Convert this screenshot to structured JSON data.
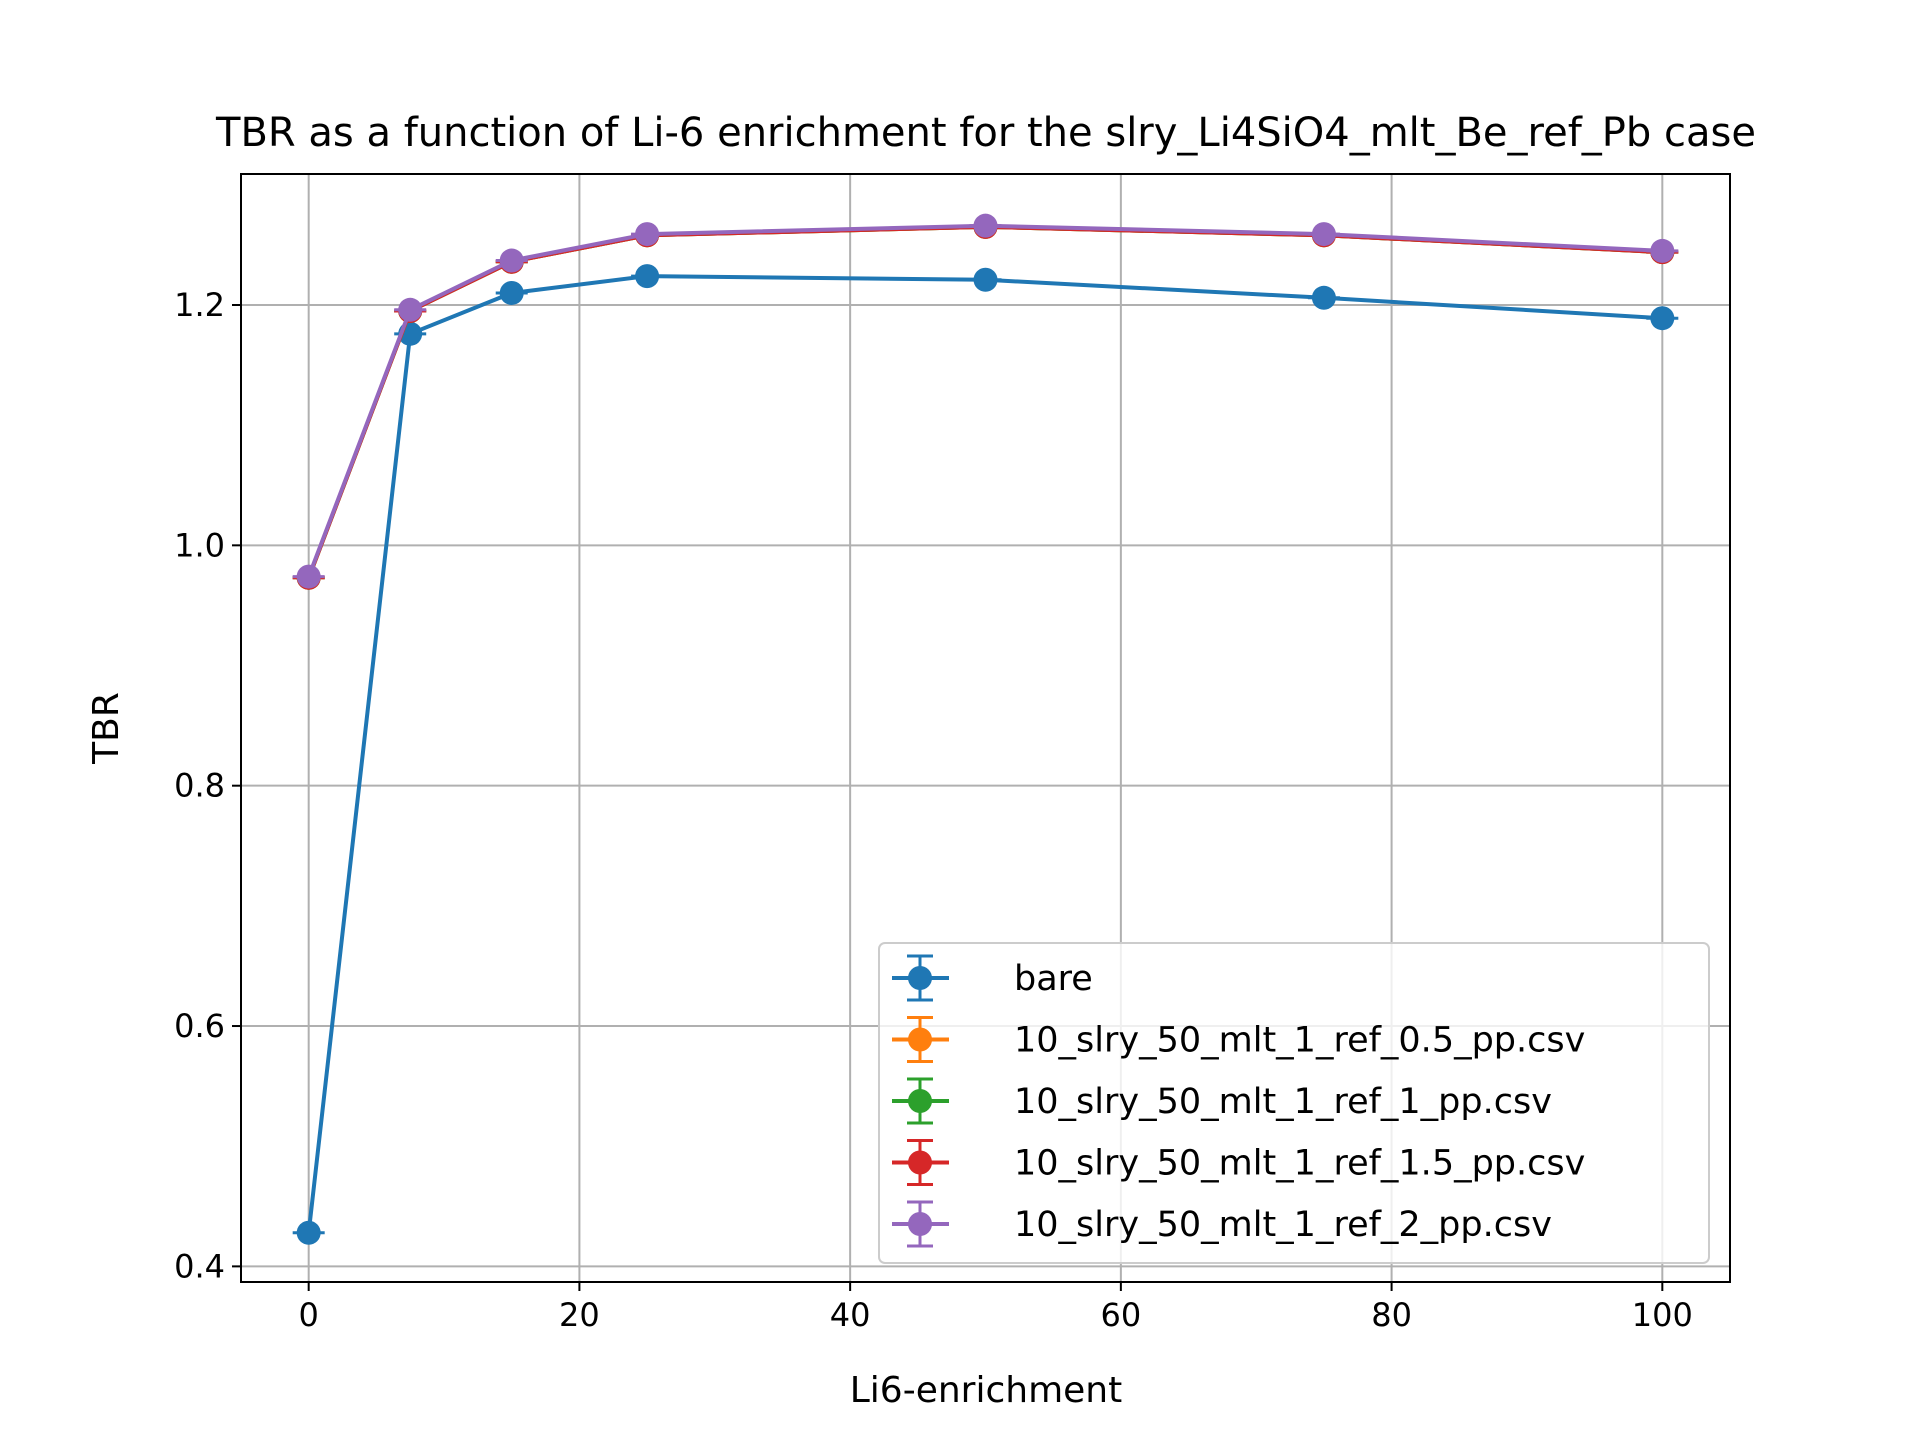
{
  "chart_data": {
    "type": "line",
    "title": "TBR as a function of Li-6 enrichment for the slry_Li4SiO4_mlt_Be_ref_Pb case",
    "xlabel": "Li6-enrichment",
    "ylabel": "TBR",
    "xlim": [
      -5,
      105
    ],
    "ylim": [
      0.387,
      1.309
    ],
    "x_ticks": [
      0,
      20,
      40,
      60,
      80,
      100
    ],
    "y_ticks": [
      0.4,
      0.6,
      0.8,
      1.0,
      1.2
    ],
    "x_tick_labels": [
      "0",
      "20",
      "40",
      "60",
      "80",
      "100"
    ],
    "y_tick_labels": [
      "0.4",
      "0.6",
      "0.8",
      "1.0",
      "1.2"
    ],
    "grid": true,
    "legend_position": "lower right",
    "markers": "circle",
    "error_bars": true,
    "x": [
      0,
      7.5,
      15,
      25,
      50,
      75,
      100
    ],
    "series": [
      {
        "name": "bare",
        "color": "#1f77b4",
        "values": [
          0.428,
          1.176,
          1.21,
          1.224,
          1.221,
          1.206,
          1.189
        ]
      },
      {
        "name": "10_slry_50_mlt_1_ref_0.5_pp.csv",
        "color": "#ff7f0e",
        "values": [
          0.973,
          1.195,
          1.236,
          1.258,
          1.265,
          1.258,
          1.244
        ]
      },
      {
        "name": "10_slry_50_mlt_1_ref_1_pp.csv",
        "color": "#2ca02c",
        "values": [
          0.973,
          1.195,
          1.236,
          1.258,
          1.265,
          1.258,
          1.244
        ]
      },
      {
        "name": "10_slry_50_mlt_1_ref_1.5_pp.csv",
        "color": "#d62728",
        "values": [
          0.973,
          1.195,
          1.236,
          1.258,
          1.265,
          1.258,
          1.244
        ]
      },
      {
        "name": "10_slry_50_mlt_1_ref_2_pp.csv",
        "color": "#9467bd",
        "values": [
          0.974,
          1.196,
          1.237,
          1.259,
          1.266,
          1.259,
          1.245
        ]
      }
    ]
  }
}
